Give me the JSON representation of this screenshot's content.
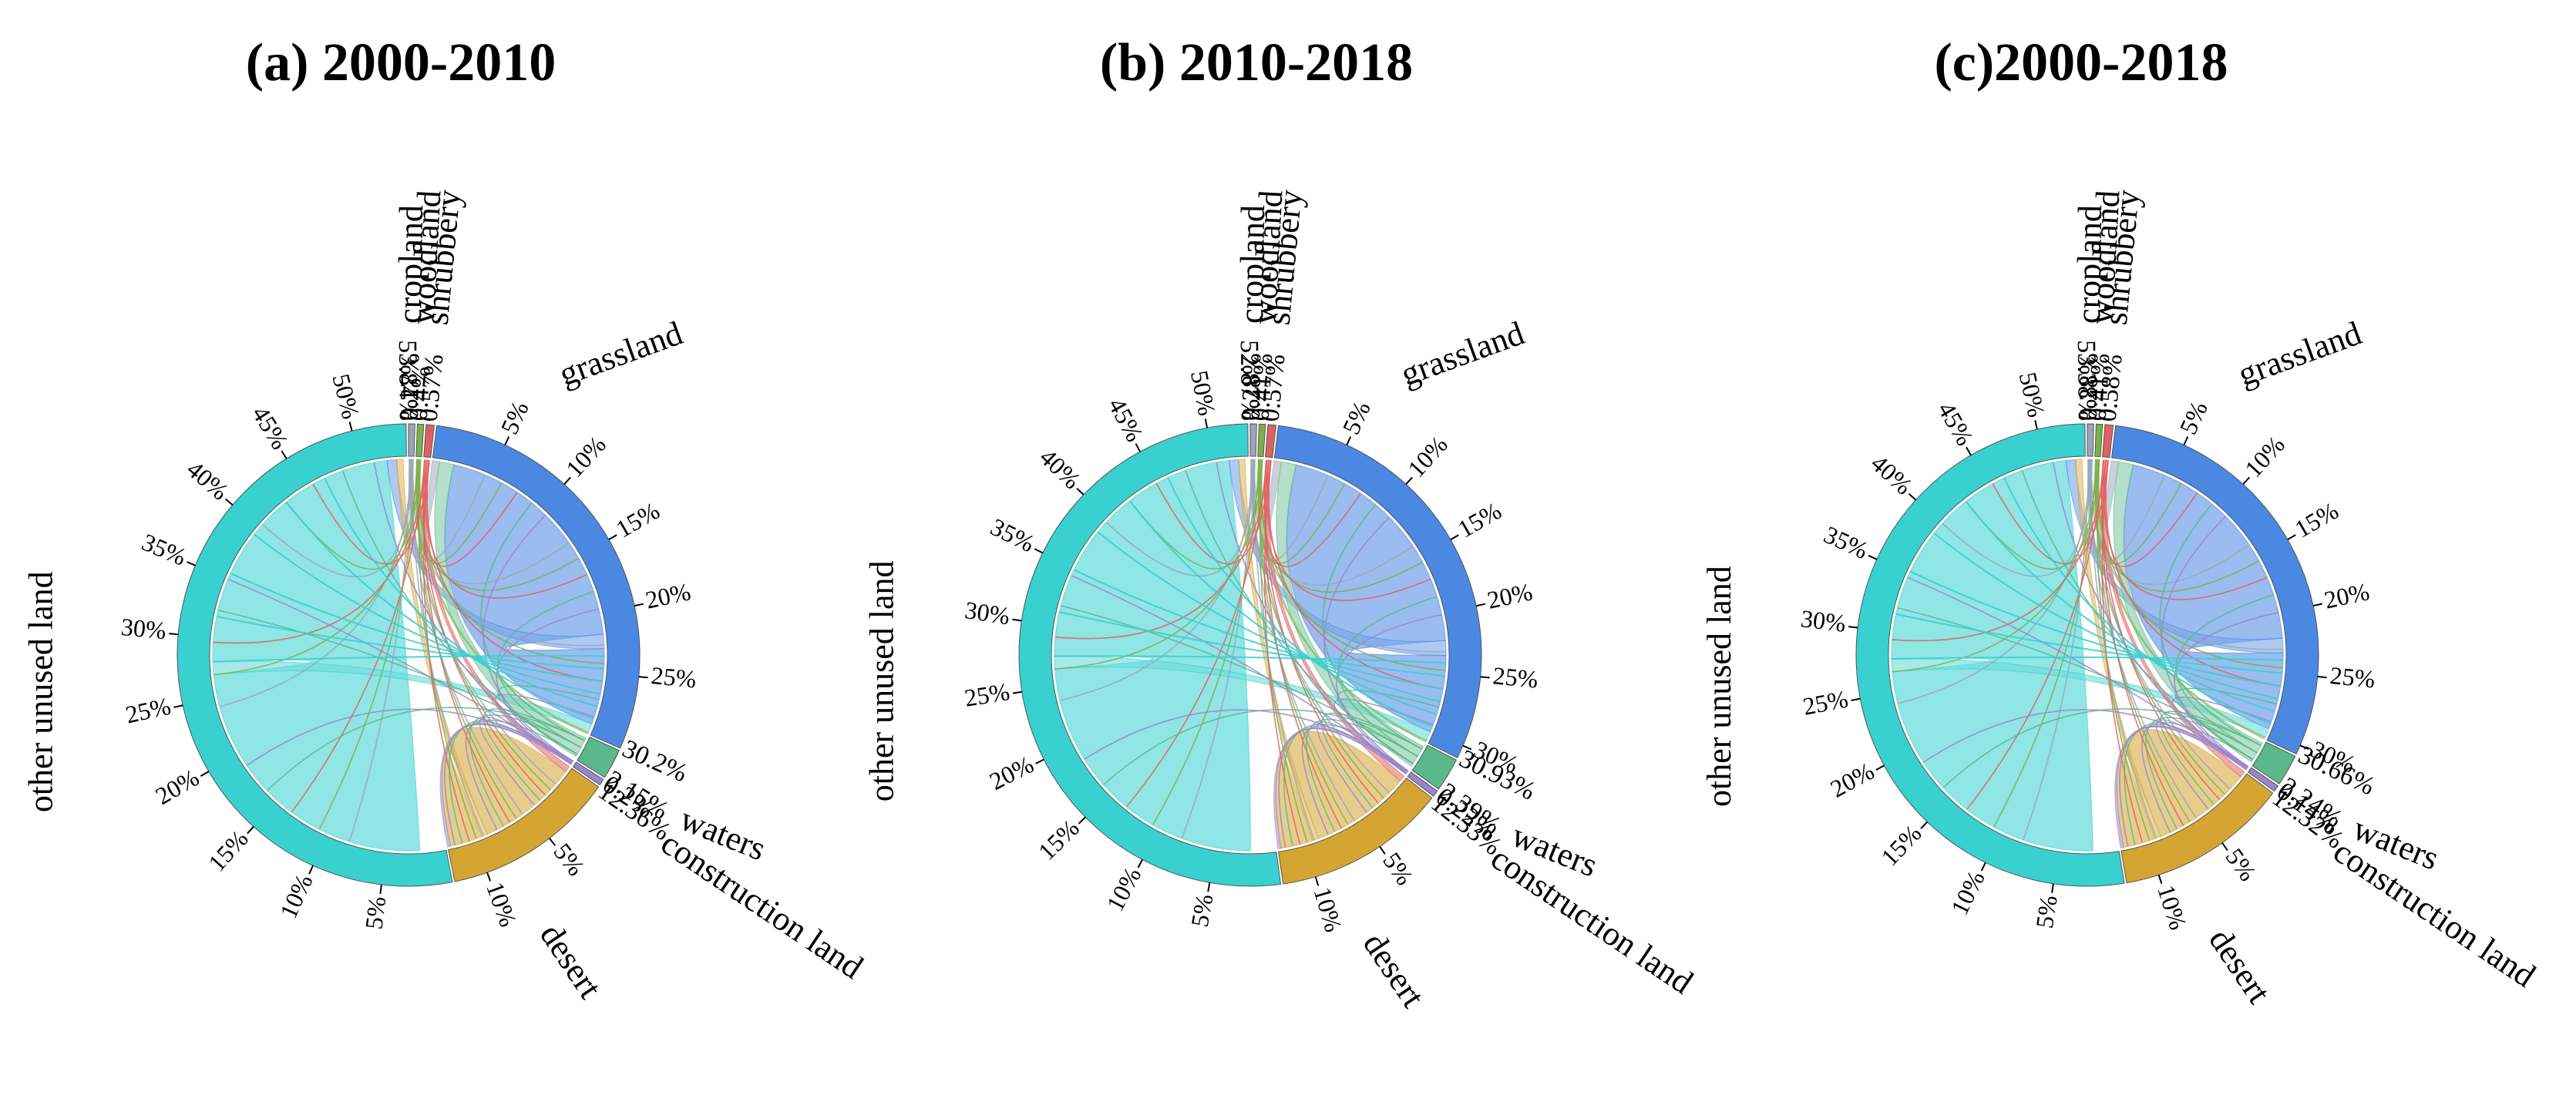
{
  "chart_data": [
    {
      "type": "chord",
      "title": "(a) 2000-2010",
      "categories": [
        "cropland",
        "woodland",
        "shrubbery",
        "grassland",
        "waters",
        "construction land",
        "desert",
        "other unused land"
      ],
      "values": [
        0.27,
        0.4,
        0.57,
        30.2,
        2.15,
        0.2,
        12.36,
        53.84
      ],
      "value_labels": [
        "0.27%",
        "0.4%",
        "0.57%",
        "30.2%",
        "2.15%",
        "0.2%",
        "12.36%",
        "53.84%"
      ]
    },
    {
      "type": "chord",
      "title": "(b) 2010-2018",
      "categories": [
        "cropland",
        "woodland",
        "shrubbery",
        "grassland",
        "waters",
        "construction land",
        "desert",
        "other unused land"
      ],
      "values": [
        0.28,
        0.41,
        0.57,
        30.93,
        2.39,
        0.22,
        12.33,
        52.87
      ],
      "value_labels": [
        "0.28%",
        "0.41%",
        "0.57%",
        "30.93%",
        "2.39%",
        "0.22%",
        "12.33%",
        "52.87%"
      ]
    },
    {
      "type": "chord",
      "title": "(c)2000-2018",
      "categories": [
        "cropland",
        "woodland",
        "shrubbery",
        "grassland",
        "waters",
        "construction land",
        "desert",
        "other unused land"
      ],
      "values": [
        0.28,
        0.41,
        0.58,
        30.66,
        2.24,
        0.14,
        12.32,
        53.38
      ],
      "value_labels": [
        "0.28%",
        "0.41%",
        "0.58%",
        "30.66%",
        "2.24%",
        "0.14%",
        "12.32%",
        "53.38%"
      ]
    }
  ],
  "colors": {
    "cropland": "#9aa7b8",
    "woodland": "#7bb04a",
    "shrubbery": "#e06060",
    "grassland": "#4b88e2",
    "waters": "#5ab88a",
    "construction land": "#9a86c8",
    "desert": "#d4a532",
    "other unused land": "#39d0d0"
  },
  "tick_step_percent": 5
}
